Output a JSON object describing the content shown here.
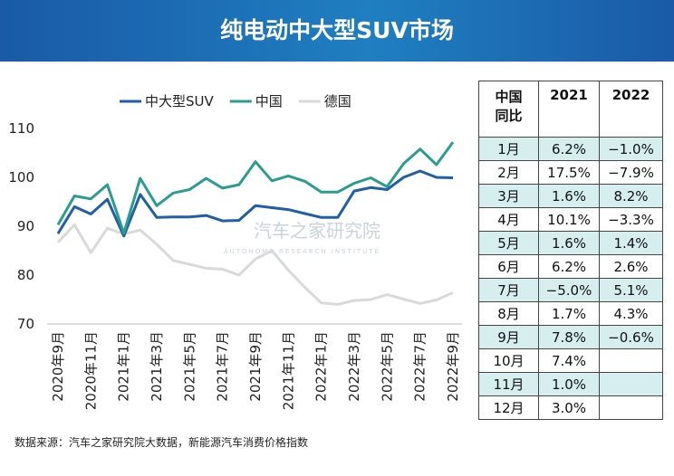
{
  "chart_data": {
    "type": "line",
    "title": "纯电动中大型SUV市场",
    "categories": [
      "2020年9月",
      null,
      "2020年11月",
      null,
      "2021年1月",
      null,
      "2021年3月",
      null,
      "2021年5月",
      null,
      "2021年7月",
      null,
      "2021年9月",
      null,
      "2021年11月",
      null,
      "2022年1月",
      null,
      "2022年3月",
      null,
      "2022年5月",
      null,
      "2022年7月",
      null,
      "2022年9月"
    ],
    "series": [
      {
        "name": "中大型SUV",
        "color": "#1f5fa8",
        "values": [
          88.5,
          94,
          92.5,
          95.5,
          88,
          96.5,
          91.8,
          91.9,
          91.9,
          92.2,
          91.1,
          91.2,
          94.2,
          93.8,
          93.4,
          92.6,
          91.8,
          91.8,
          97.2,
          97.9,
          97.5,
          100,
          101.3,
          100,
          99.9
        ]
      },
      {
        "name": "中国",
        "color": "#2a9d8f",
        "values": [
          90.3,
          96.2,
          95.6,
          98.5,
          88.6,
          99.8,
          94.2,
          96.8,
          97.5,
          99.8,
          97.8,
          98.5,
          103.2,
          99.3,
          100.3,
          99.2,
          97,
          97,
          98.8,
          99.9,
          98.1,
          102.8,
          105.8,
          102.6,
          107.2
        ]
      },
      {
        "name": "德国",
        "color": "#d9d9d9",
        "values": [
          86.7,
          90.3,
          84.6,
          89.6,
          88.4,
          89.2,
          86.3,
          83,
          82.2,
          81.4,
          81.2,
          80,
          83.3,
          85,
          81,
          77.5,
          74.3,
          74,
          74.8,
          75,
          76,
          75.1,
          74.2,
          74.9,
          76.4
        ]
      }
    ],
    "ylim": [
      70,
      110
    ],
    "yticks": [
      70,
      80,
      90,
      100,
      110
    ],
    "grid": false
  },
  "watermark": {
    "name": "汽车之家研究院",
    "subtitle": "AUTOHOME RESEARCH INSTITUTE"
  },
  "table": {
    "header": [
      [
        "中国",
        "同比"
      ],
      "2021",
      "2022"
    ],
    "rows": [
      [
        "1月",
        "6.2%",
        "−1.0%"
      ],
      [
        "2月",
        "17.5%",
        "−7.9%"
      ],
      [
        "3月",
        "1.6%",
        "8.2%"
      ],
      [
        "4月",
        "10.1%",
        "−3.3%"
      ],
      [
        "5月",
        "1.6%",
        "1.4%"
      ],
      [
        "6月",
        "6.2%",
        "2.6%"
      ],
      [
        "7月",
        "−5.0%",
        "5.1%"
      ],
      [
        "8月",
        "1.7%",
        "4.3%"
      ],
      [
        "9月",
        "7.8%",
        "−0.6%"
      ],
      [
        "10月",
        "7.4%",
        null
      ],
      [
        "11月",
        "1.0%",
        null
      ],
      [
        "12月",
        "3.0%",
        null
      ]
    ]
  },
  "source": "数据来源：汽车之家研究院大数据，新能源汽车消费价格指数"
}
